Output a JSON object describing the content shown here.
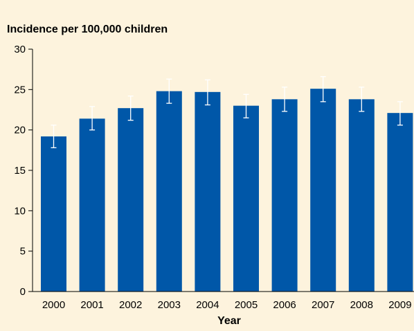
{
  "chart_data": {
    "type": "bar",
    "title": "Incidence per 100,000 children",
    "xlabel": "Year",
    "ylabel": "",
    "categories": [
      "2000",
      "2001",
      "2002",
      "2003",
      "2004",
      "2005",
      "2006",
      "2007",
      "2008",
      "2009"
    ],
    "values": [
      19.2,
      21.4,
      22.7,
      24.8,
      24.7,
      23.0,
      23.8,
      25.1,
      23.8,
      22.1
    ],
    "error_low": [
      17.8,
      20.0,
      21.2,
      23.3,
      23.1,
      21.5,
      22.3,
      23.5,
      22.3,
      20.6
    ],
    "error_high": [
      20.6,
      22.9,
      24.2,
      26.3,
      26.2,
      24.4,
      25.3,
      26.6,
      25.3,
      23.5
    ],
    "ylim": [
      0,
      30
    ],
    "yticks": [
      0,
      5,
      10,
      15,
      20,
      25,
      30
    ],
    "grid": false,
    "colors": {
      "bar": "#0057a8",
      "background": "#fdf3dd",
      "axis": "#000000",
      "error_bar": "#ffffff"
    }
  }
}
